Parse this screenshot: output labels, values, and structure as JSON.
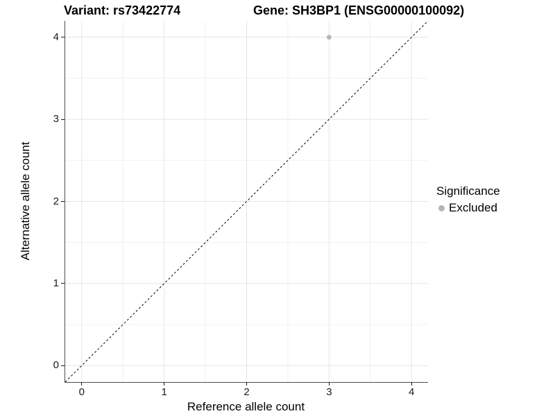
{
  "chart_data": {
    "type": "scatter",
    "titles": {
      "variant": "Variant: rs73422774",
      "gene": "Gene: SH3BP1 (ENSG00000100092)"
    },
    "xlabel": "Reference allele count",
    "ylabel": "Alternative allele count",
    "xlim": [
      -0.2,
      4.2
    ],
    "ylim": [
      -0.2,
      4.2
    ],
    "x_ticks": [
      0,
      1,
      2,
      3,
      4
    ],
    "y_ticks": [
      0,
      1,
      2,
      3,
      4
    ],
    "x_minor_ticks": [
      0.5,
      1.5,
      2.5,
      3.5
    ],
    "y_minor_ticks": [
      0.5,
      1.5,
      2.5,
      3.5
    ],
    "grid": "major+minor",
    "points": [
      {
        "x": 3,
        "y": 4,
        "significance": "Excluded"
      }
    ],
    "reference_line": {
      "type": "identity",
      "from": [
        -0.2,
        -0.2
      ],
      "to": [
        4.2,
        4.2
      ],
      "style": "dashed",
      "color": "#000000"
    },
    "legend": {
      "title": "Significance",
      "position": "right",
      "items": [
        {
          "label": "Excluded",
          "color": "#b5b5b5",
          "marker": "circle"
        }
      ]
    }
  },
  "style": {
    "background": "#ffffff",
    "grid_major_color": "#e4e4e4",
    "grid_minor_color": "#f0f0f0",
    "axis_line_color": "#4d4d4d",
    "tick_color": "#1a1a1a",
    "point_color": "#b5b5b5",
    "text_color": "#000000"
  }
}
